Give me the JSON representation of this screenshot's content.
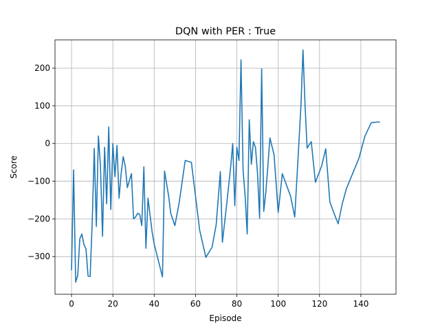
{
  "chart_data": {
    "type": "line",
    "title": "DQN with PER : True",
    "xlabel": "Episode",
    "ylabel": "Score",
    "xlim": [
      -8,
      157
    ],
    "ylim": [
      -400,
      275
    ],
    "xticks": [
      0,
      20,
      40,
      60,
      80,
      100,
      120,
      140
    ],
    "yticks": [
      -300,
      -200,
      -100,
      0,
      100,
      200
    ],
    "grid": true,
    "line_color": "#1f77b4",
    "series": [
      {
        "x": [
          0,
          1,
          2,
          3,
          4,
          5,
          6,
          7,
          8,
          9,
          10,
          11,
          12,
          13,
          14,
          15,
          16,
          17,
          18,
          19,
          20,
          21,
          22,
          23,
          24,
          25,
          26,
          27,
          28,
          29,
          30,
          31,
          32,
          33,
          34,
          35,
          36,
          37,
          38,
          39,
          40,
          44,
          45,
          47,
          48,
          50,
          52,
          55,
          58,
          62,
          65,
          68,
          70,
          72,
          73,
          75,
          77,
          78,
          79,
          80,
          81,
          82,
          83,
          84,
          85,
          86,
          87,
          88,
          89,
          90,
          91,
          92,
          93,
          94,
          95,
          96,
          98,
          100,
          102,
          104,
          106,
          108,
          110,
          111,
          112,
          113,
          114,
          116,
          118,
          121,
          123,
          125,
          127,
          129,
          131,
          133,
          136,
          139,
          142,
          145,
          148,
          149
        ],
        "y": [
          -335,
          -70,
          -368,
          -350,
          -253,
          -240,
          -268,
          -280,
          -352,
          -353,
          -210,
          -13,
          -220,
          20,
          -60,
          -246,
          -10,
          -160,
          44,
          -175,
          0,
          -88,
          -5,
          -145,
          -80,
          -35,
          -60,
          -117,
          -98,
          -80,
          -200,
          -195,
          -185,
          -188,
          -218,
          -62,
          -278,
          -145,
          -190,
          -235,
          -267,
          -354,
          -73,
          -140,
          -185,
          -218,
          -160,
          -45,
          -50,
          -230,
          -302,
          -275,
          -215,
          -75,
          -262,
          -165,
          -62,
          0,
          -165,
          -10,
          -45,
          222,
          -70,
          -140,
          -240,
          63,
          -55,
          5,
          -10,
          -80,
          -198,
          198,
          -180,
          -130,
          -60,
          15,
          -30,
          -183,
          -80,
          -110,
          -140,
          -195,
          0,
          100,
          248,
          100,
          -12,
          5,
          -103,
          -60,
          -14,
          -155,
          -185,
          -213,
          -160,
          -120,
          -80,
          -40,
          20,
          55,
          57,
          57
        ]
      }
    ]
  }
}
